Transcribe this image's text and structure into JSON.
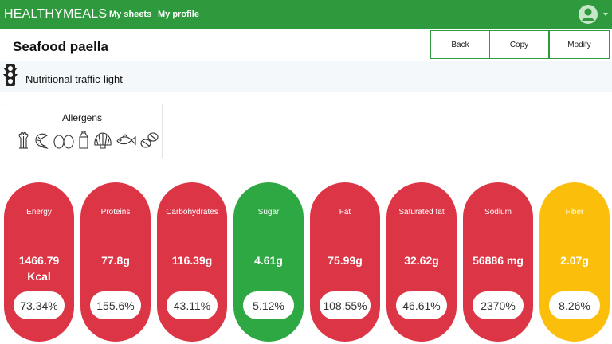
{
  "nav": {
    "brand": "HEALTHYMEALS",
    "links": [
      "My sheets",
      "My profile"
    ]
  },
  "page": {
    "title": "Seafood paella",
    "buttons": {
      "back": "Back",
      "copy": "Copy",
      "modify": "Modify"
    },
    "traffic_light_label": "Nutritional traffic-light"
  },
  "allergens": {
    "title": "Allergens",
    "icons": [
      "celery-icon",
      "crustacean-icon",
      "egg-icon",
      "milk-carton-icon",
      "mollusc-shell-icon",
      "fish-icon",
      "nuts-icon"
    ]
  },
  "colors": {
    "nav": "#2f9a3d",
    "red": "#dc3545",
    "green": "#2ea843",
    "yellow": "#fbbf0b"
  },
  "nutrients": [
    {
      "label": "Energy",
      "value": "1466.79 Kcal",
      "percent": "73.34%",
      "status": "red"
    },
    {
      "label": "Proteins",
      "value": "77.8g",
      "percent": "155.6%",
      "status": "red"
    },
    {
      "label": "Carbohydrates",
      "value": "116.39g",
      "percent": "43.11%",
      "status": "red"
    },
    {
      "label": "Sugar",
      "value": "4.61g",
      "percent": "5.12%",
      "status": "green"
    },
    {
      "label": "Fat",
      "value": "75.99g",
      "percent": "108.55%",
      "status": "red"
    },
    {
      "label": "Saturated fat",
      "value": "32.62g",
      "percent": "46.61%",
      "status": "red"
    },
    {
      "label": "Sodium",
      "value": "56886 mg",
      "percent": "2370%",
      "status": "red"
    },
    {
      "label": "Fiber",
      "value": "2.07g",
      "percent": "8.26%",
      "status": "yellow"
    }
  ]
}
